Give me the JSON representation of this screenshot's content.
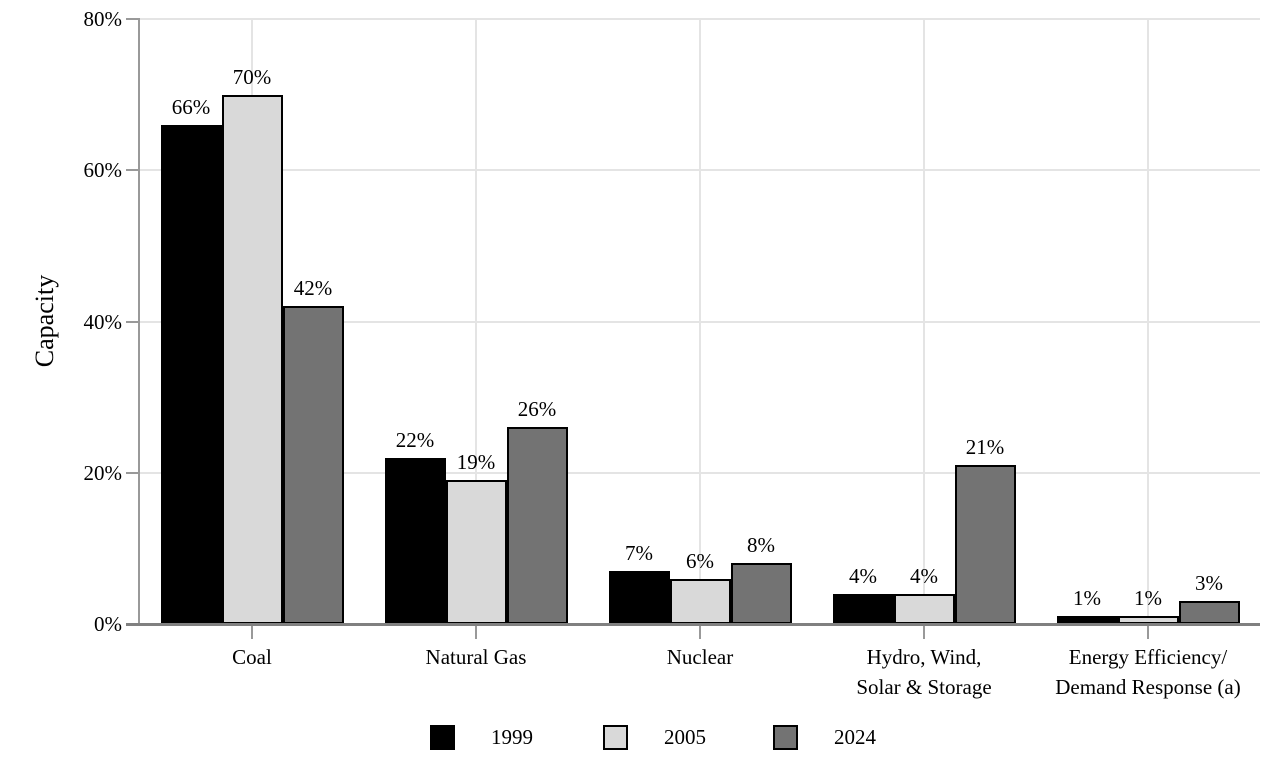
{
  "chart_data": {
    "type": "bar",
    "title": "",
    "ylabel": "Capacity",
    "xlabel": "",
    "ylim": [
      0,
      80
    ],
    "yticks": [
      {
        "value": 0,
        "label": "0%"
      },
      {
        "value": 20,
        "label": "20%"
      },
      {
        "value": 40,
        "label": "40%"
      },
      {
        "value": 60,
        "label": "60%"
      },
      {
        "value": 80,
        "label": "80%"
      }
    ],
    "categories": [
      "Coal",
      "Natural Gas",
      "Nuclear",
      "Hydro, Wind,\nSolar & Storage",
      "Energy Efficiency/\nDemand Response (a)"
    ],
    "series": [
      {
        "name": "1999",
        "color": "#000000",
        "values": [
          66,
          22,
          7,
          4,
          1
        ]
      },
      {
        "name": "2005",
        "color": "#d9d9d9",
        "values": [
          70,
          19,
          6,
          4,
          1
        ]
      },
      {
        "name": "2024",
        "color": "#737373",
        "values": [
          42,
          26,
          8,
          21,
          3
        ]
      }
    ],
    "value_suffix": "%",
    "grid": true,
    "legend_position": "bottom",
    "colors": {
      "gridline": "#e4e4e4",
      "axis": "#999999",
      "baseline": "#808080",
      "bar_border": "#000000",
      "text": "#000000",
      "background": "#ffffff"
    }
  }
}
